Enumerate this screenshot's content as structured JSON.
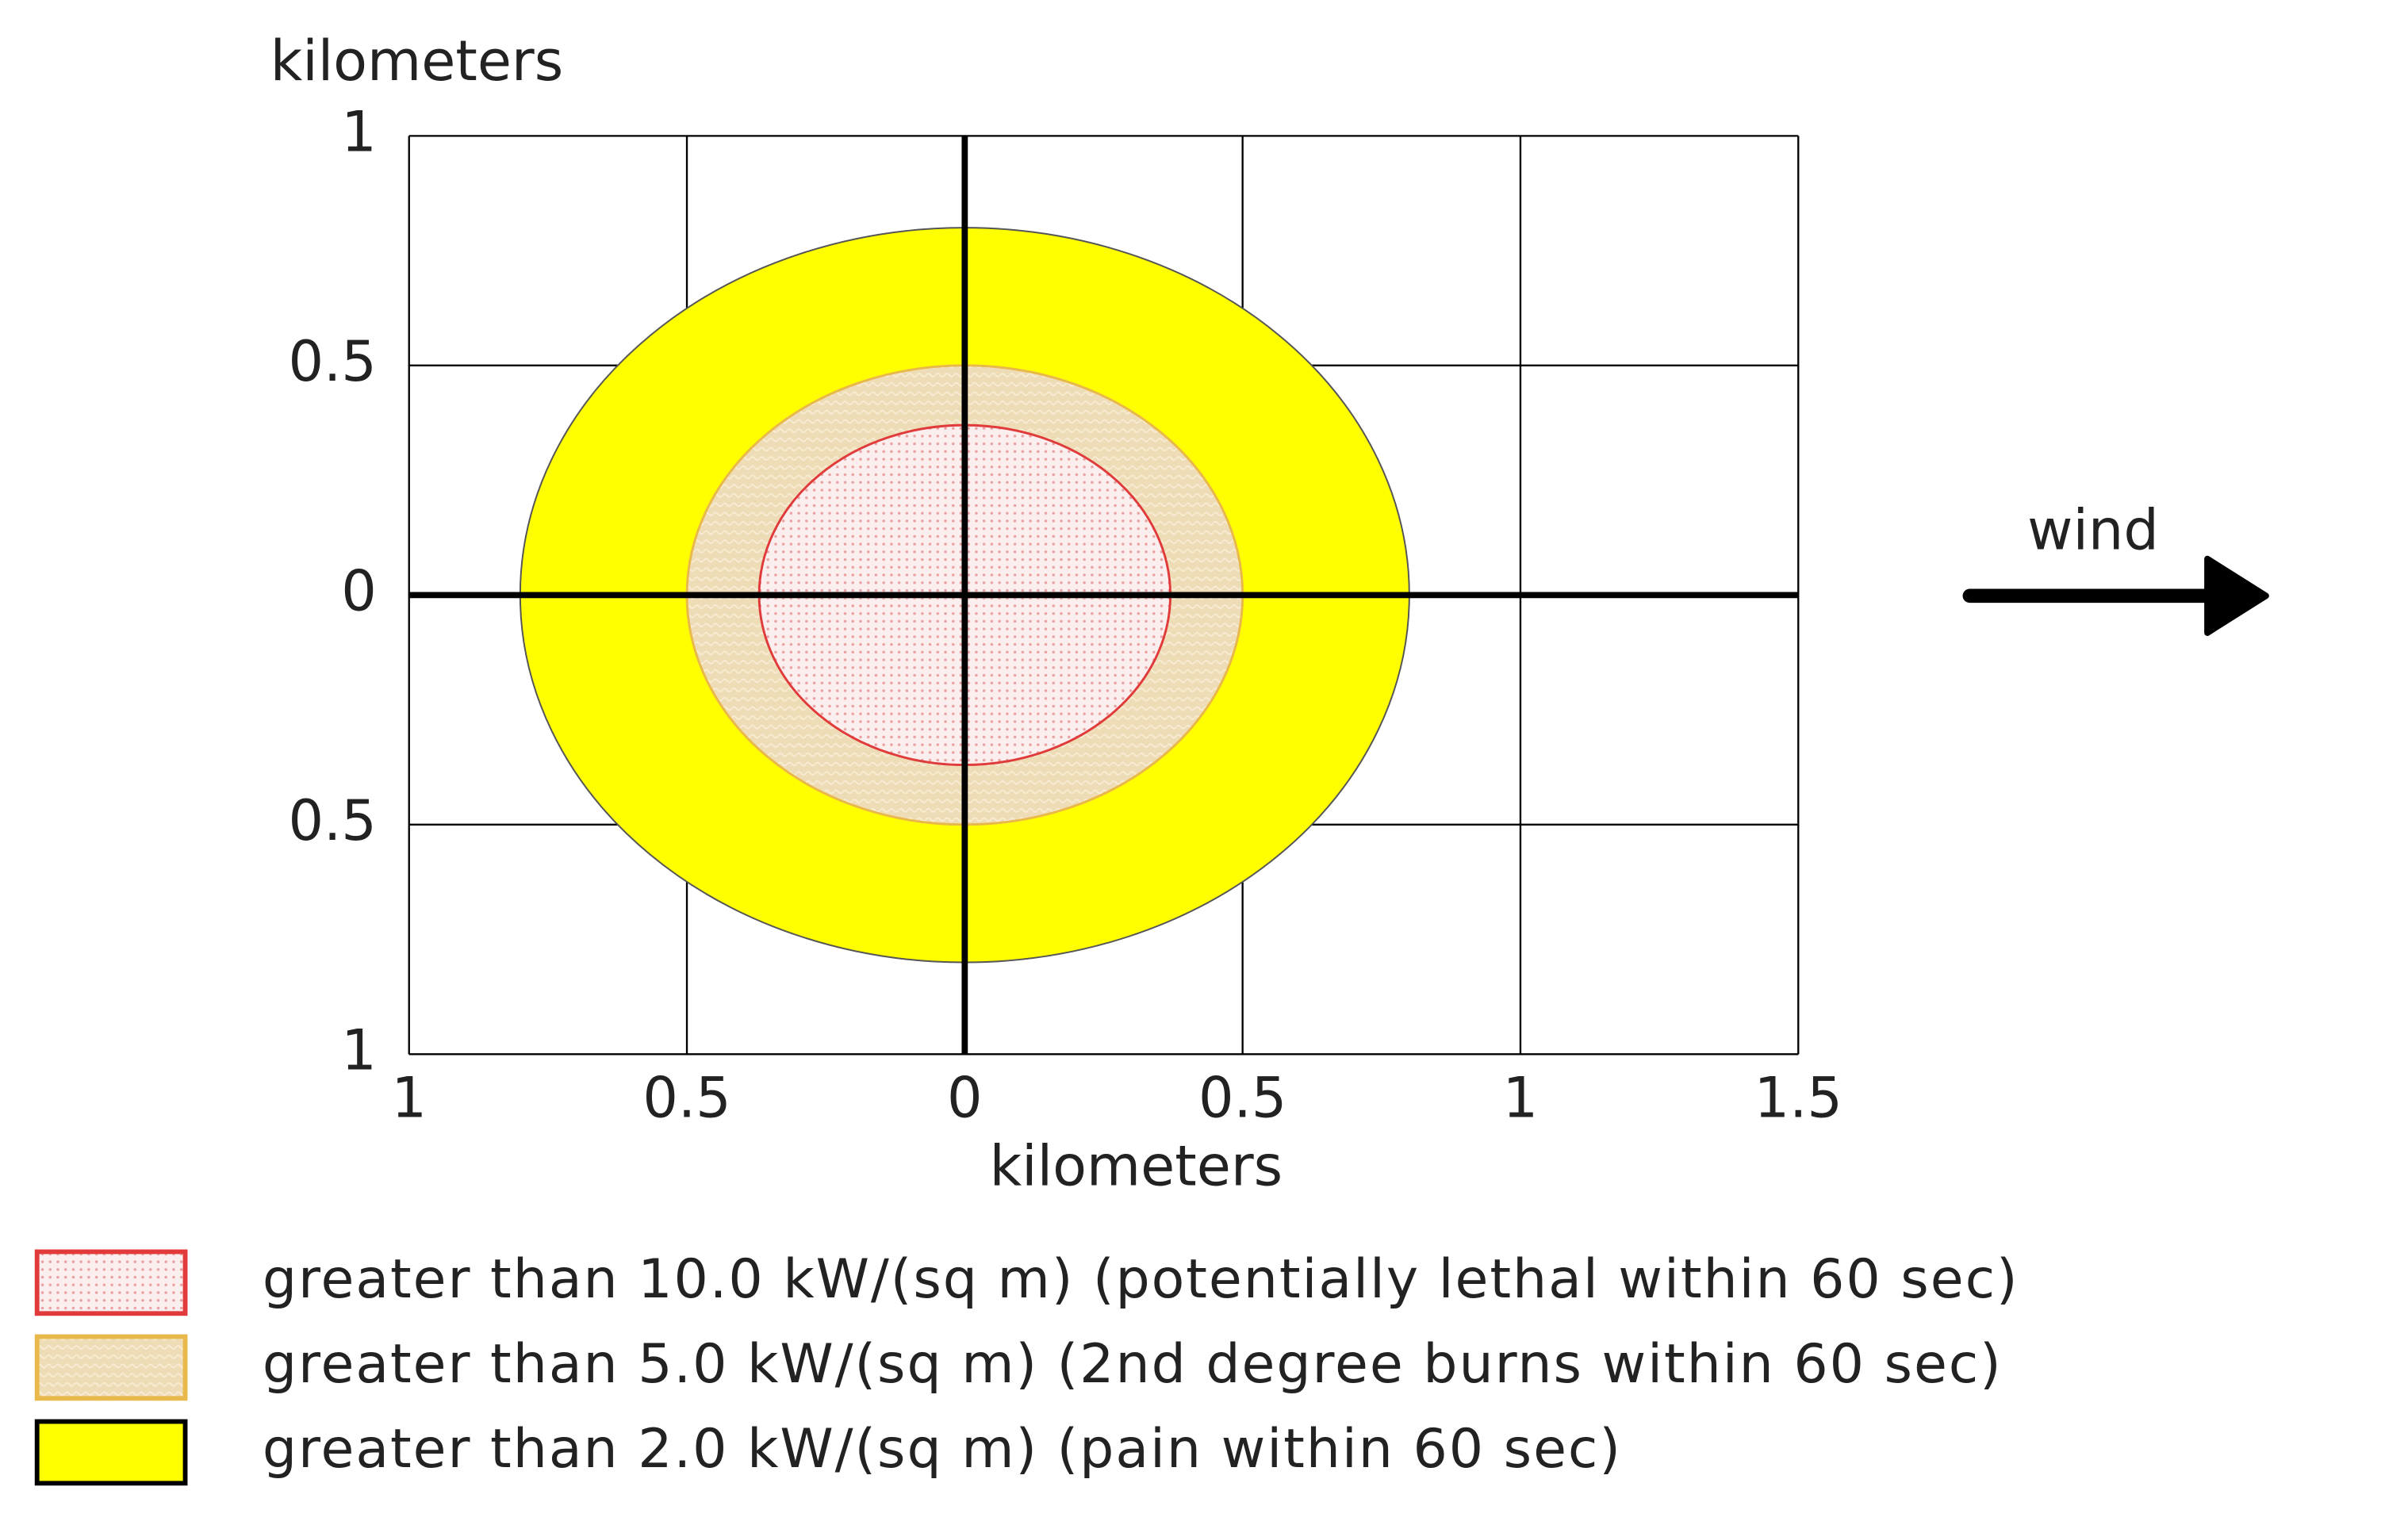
{
  "chart_data": {
    "type": "threat-zone",
    "y_label": "kilometers",
    "x_label": "kilometers",
    "annotation": "wind",
    "xlim": [
      -1,
      1.5
    ],
    "ylim": [
      -1,
      1
    ],
    "xticks": [
      {
        "value": -1,
        "label": "1"
      },
      {
        "value": -0.5,
        "label": "0.5"
      },
      0,
      0.5,
      1,
      1.5
    ],
    "yticks": [
      {
        "value": -1,
        "label": "1"
      },
      {
        "value": -0.5,
        "label": "0.5"
      },
      0,
      0.5,
      1
    ],
    "grid": true,
    "series": [
      {
        "name": "greater than 2.0 kW/(sq m) (pain within 60 sec)",
        "color": "#ffff00",
        "values": [
          0.8
        ]
      },
      {
        "name": "greater than 5.0 kW/(sq m) (2nd degree burns within 60 sec)",
        "color": "#e9b84a",
        "values": [
          0.5
        ]
      },
      {
        "name": "greater than 10.0 kW/(sq m) (potentially lethal within 60 sec)",
        "color": "#e03a3a",
        "values": [
          0.37
        ]
      }
    ]
  }
}
